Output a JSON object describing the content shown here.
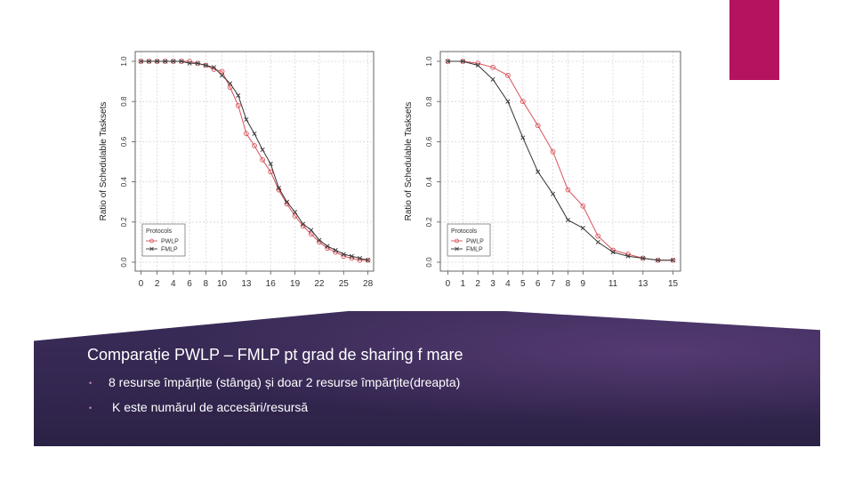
{
  "slide": {
    "title": "Comparație PWLP – FMLP pt grad de sharing f mare",
    "bullets": [
      "8 resurse împărțite (stânga) și doar 2 resurse împărțite(dreapta)",
      "K este numărul de accesări/resursă"
    ],
    "accent_color": "#b5135f",
    "panel_color": "#33264f"
  },
  "chart_data": [
    {
      "type": "line",
      "xlabel": "",
      "ylabel": "Ratio of Schedulable Tasksets",
      "ylim": [
        0,
        1
      ],
      "y_ticks": [
        "0.0",
        "0.2",
        "0.4",
        "0.6",
        "0.8",
        "1.0"
      ],
      "x_ticks": [
        0,
        2,
        4,
        6,
        8,
        10,
        13,
        16,
        19,
        22,
        25,
        28
      ],
      "grid": true,
      "legend": {
        "title": "Protocols",
        "position": "bottom-left"
      },
      "series": [
        {
          "name": "PWLP",
          "color": "#d9535b",
          "marker": "circle",
          "x": [
            0,
            1,
            2,
            3,
            4,
            5,
            6,
            7,
            8,
            9,
            10,
            11,
            12,
            13,
            14,
            15,
            16,
            17,
            18,
            19,
            20,
            21,
            22,
            23,
            24,
            25,
            26,
            27,
            28
          ],
          "values": [
            1.0,
            1.0,
            1.0,
            1.0,
            1.0,
            1.0,
            1.0,
            0.99,
            0.98,
            0.96,
            0.95,
            0.87,
            0.78,
            0.64,
            0.58,
            0.51,
            0.45,
            0.36,
            0.29,
            0.23,
            0.18,
            0.14,
            0.1,
            0.07,
            0.05,
            0.03,
            0.02,
            0.01,
            0.01
          ]
        },
        {
          "name": "FMLP",
          "color": "#333333",
          "marker": "x",
          "x": [
            0,
            1,
            2,
            3,
            4,
            5,
            6,
            7,
            8,
            9,
            10,
            11,
            12,
            13,
            14,
            15,
            16,
            17,
            18,
            19,
            20,
            21,
            22,
            23,
            24,
            25,
            26,
            27,
            28
          ],
          "values": [
            1.0,
            1.0,
            1.0,
            1.0,
            1.0,
            1.0,
            0.99,
            0.99,
            0.98,
            0.97,
            0.93,
            0.89,
            0.83,
            0.71,
            0.64,
            0.56,
            0.49,
            0.37,
            0.3,
            0.25,
            0.19,
            0.16,
            0.11,
            0.08,
            0.06,
            0.04,
            0.03,
            0.02,
            0.01
          ]
        }
      ]
    },
    {
      "type": "line",
      "xlabel": "",
      "ylabel": "Ratio of Schedulable Tasksets",
      "ylim": [
        0,
        1
      ],
      "y_ticks": [
        "0.0",
        "0.2",
        "0.4",
        "0.6",
        "0.8",
        "1.0"
      ],
      "x_ticks": [
        0,
        1,
        2,
        3,
        4,
        5,
        6,
        7,
        8,
        9,
        11,
        13,
        15
      ],
      "grid": true,
      "legend": {
        "title": "Protocols",
        "position": "bottom-left"
      },
      "series": [
        {
          "name": "PWLP",
          "color": "#d9535b",
          "marker": "circle",
          "x": [
            0,
            1,
            2,
            3,
            4,
            5,
            6,
            7,
            8,
            9,
            10,
            11,
            12,
            13,
            14,
            15
          ],
          "values": [
            1.0,
            1.0,
            0.99,
            0.97,
            0.93,
            0.8,
            0.68,
            0.55,
            0.36,
            0.28,
            0.13,
            0.06,
            0.04,
            0.02,
            0.01,
            0.01
          ]
        },
        {
          "name": "FMLP",
          "color": "#333333",
          "marker": "x",
          "x": [
            0,
            1,
            2,
            3,
            4,
            5,
            6,
            7,
            8,
            9,
            10,
            11,
            12,
            13,
            14,
            15
          ],
          "values": [
            1.0,
            1.0,
            0.98,
            0.91,
            0.8,
            0.62,
            0.45,
            0.34,
            0.21,
            0.17,
            0.1,
            0.05,
            0.03,
            0.02,
            0.01,
            0.01
          ]
        }
      ]
    }
  ]
}
